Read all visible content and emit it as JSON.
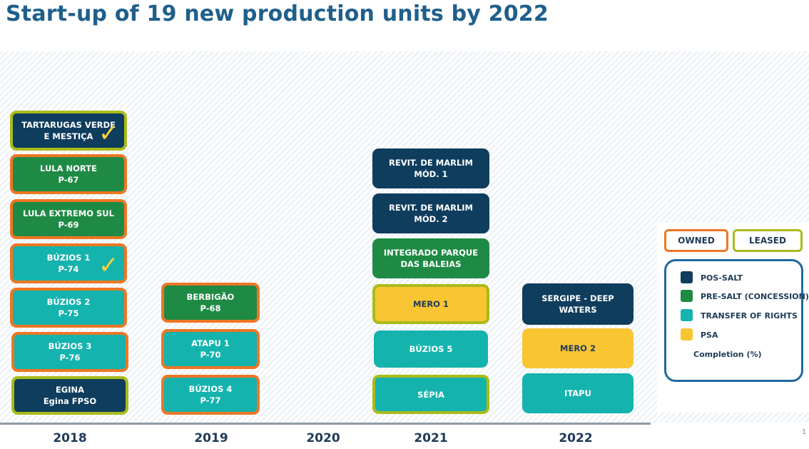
{
  "title": "Start-up of 19 new production units by 2022",
  "years": [
    "2018",
    "2019",
    "2020",
    "2021",
    "2022"
  ],
  "units": {
    "tartarugas": [
      "TARTARUGAS VERDE",
      "E MESTIÇA"
    ],
    "lula_norte": [
      "LULA NORTE",
      "P-67"
    ],
    "lula_extremo_sul": [
      "LULA EXTREMO SUL",
      "P-69"
    ],
    "buzios1": [
      "BÚZIOS 1",
      "P-74"
    ],
    "buzios2": [
      "BÚZIOS 2",
      "P-75"
    ],
    "buzios3": [
      "BÚZIOS 3",
      "P-76"
    ],
    "egina": [
      "EGINA",
      "Egina FPSO"
    ],
    "berbigao": [
      "BERBIGÃO",
      "P-68"
    ],
    "atapu1": [
      "ATAPU 1",
      "P-70"
    ],
    "buzios4": [
      "BÚZIOS 4",
      "P-77"
    ],
    "revit1": [
      "REVIT. DE MARLIM",
      "MÓD. 1"
    ],
    "revit2": [
      "REVIT. DE MARLIM",
      "MÓD. 2"
    ],
    "integrado": [
      "INTEGRADO PARQUE",
      "DAS BALEIAS"
    ],
    "mero1": [
      "MERO 1"
    ],
    "buzios5": [
      "BÚZIOS 5"
    ],
    "sepia": [
      "SÉPIA"
    ],
    "sergipe": [
      "SERGIPE - DEEP",
      "WATERS"
    ],
    "mero2": [
      "MERO 2"
    ],
    "itapu": [
      "ITAPU"
    ]
  },
  "check_mark": "✓",
  "legend": {
    "owned": "OWNED",
    "leased": "LEASED",
    "items": [
      "POS-SALT",
      "PRE-SALT (CONCESSION)",
      "TRANSFER OF RIGHTS",
      "PSA"
    ],
    "completion": "Completion (%)",
    "colors": [
      "#0f3d5e",
      "#1e8a44",
      "#14b3ad",
      "#f9c533"
    ]
  },
  "page_number": "1"
}
